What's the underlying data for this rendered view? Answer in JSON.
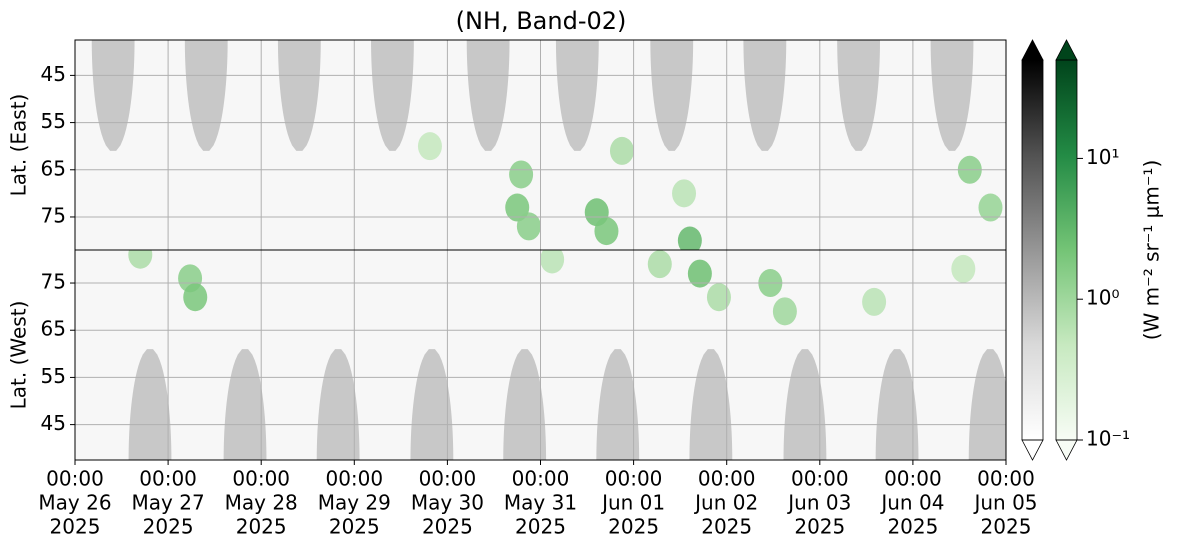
{
  "chart_data": {
    "type": "heatmap",
    "title": "(NH, Band-02)",
    "xlim": [
      "2025-05-26T00:00",
      "2025-06-05T00:00"
    ],
    "xticks": [
      {
        "value": "2025-05-26T00:00",
        "label": [
          "00:00",
          "May 26",
          "2025"
        ]
      },
      {
        "value": "2025-05-27T00:00",
        "label": [
          "00:00",
          "May 27",
          "2025"
        ]
      },
      {
        "value": "2025-05-28T00:00",
        "label": [
          "00:00",
          "May 28",
          "2025"
        ]
      },
      {
        "value": "2025-05-29T00:00",
        "label": [
          "00:00",
          "May 29",
          "2025"
        ]
      },
      {
        "value": "2025-05-30T00:00",
        "label": [
          "00:00",
          "May 30",
          "2025"
        ]
      },
      {
        "value": "2025-05-31T00:00",
        "label": [
          "00:00",
          "May 31",
          "2025"
        ]
      },
      {
        "value": "2025-06-01T00:00",
        "label": [
          "00:00",
          "Jun 01",
          "2025"
        ]
      },
      {
        "value": "2025-06-02T00:00",
        "label": [
          "00:00",
          "Jun 02",
          "2025"
        ]
      },
      {
        "value": "2025-06-03T00:00",
        "label": [
          "00:00",
          "Jun 03",
          "2025"
        ]
      },
      {
        "value": "2025-06-04T00:00",
        "label": [
          "00:00",
          "Jun 04",
          "2025"
        ]
      },
      {
        "value": "2025-06-05T00:00",
        "label": [
          "00:00",
          "Jun 05",
          "2025"
        ]
      }
    ],
    "grid": true,
    "log_scale": true,
    "clim": [
      0.1,
      50
    ],
    "panels": [
      {
        "ylabel": "Lat. (East)",
        "ylim": [
          37.5,
          82
        ],
        "y_inverted": true,
        "yticks": [
          45,
          55,
          65,
          75
        ],
        "day_domes": {
          "lat_edge": 61,
          "value": 0.7,
          "times": [
            "2025-05-26T09:50",
            "2025-05-27T09:50",
            "2025-05-28T09:50",
            "2025-05-29T09:50",
            "2025-05-30T10:30",
            "2025-05-31T09:30",
            "2025-06-01T09:50",
            "2025-06-02T09:50",
            "2025-06-03T10:00",
            "2025-06-04T10:05"
          ]
        },
        "patches": [
          {
            "time": "2025-05-29T19:30",
            "lat": 60,
            "value": 0.5
          },
          {
            "time": "2025-05-30T19:00",
            "lat": 66,
            "value": 1.5
          },
          {
            "time": "2025-05-30T18:00",
            "lat": 73,
            "value": 2
          },
          {
            "time": "2025-05-30T21:00",
            "lat": 77,
            "value": 1.5
          },
          {
            "time": "2025-05-31T14:30",
            "lat": 74,
            "value": 2.5
          },
          {
            "time": "2025-05-31T17:00",
            "lat": 78,
            "value": 2
          },
          {
            "time": "2025-05-31T21:00",
            "lat": 61,
            "value": 0.8
          },
          {
            "time": "2025-06-01T14:30",
            "lat": 80,
            "value": 3
          },
          {
            "time": "2025-06-01T13:00",
            "lat": 70,
            "value": 0.6
          },
          {
            "time": "2025-06-04T14:40",
            "lat": 65,
            "value": 1.5
          },
          {
            "time": "2025-06-04T20:00",
            "lat": 73,
            "value": 1.2
          }
        ]
      },
      {
        "ylabel": "Lat. (West)",
        "ylim": [
          37.5,
          82
        ],
        "y_inverted": false,
        "yticks": [
          45,
          55,
          65,
          75
        ],
        "day_domes": {
          "lat_edge": 61,
          "value": 0.7,
          "times": [
            "2025-05-26T19:20",
            "2025-05-27T19:50",
            "2025-05-28T19:50",
            "2025-05-29T20:00",
            "2025-05-30T19:55",
            "2025-05-31T19:55",
            "2025-06-01T19:55",
            "2025-06-02T20:10",
            "2025-06-03T19:55",
            "2025-06-04T19:55"
          ]
        },
        "patches": [
          {
            "time": "2025-05-26T16:50",
            "lat": 81,
            "value": 0.8
          },
          {
            "time": "2025-05-27T05:40",
            "lat": 76,
            "value": 1.5
          },
          {
            "time": "2025-05-27T07:00",
            "lat": 72,
            "value": 2
          },
          {
            "time": "2025-05-31T03:00",
            "lat": 80,
            "value": 0.6
          },
          {
            "time": "2025-06-01T06:45",
            "lat": 79,
            "value": 0.8
          },
          {
            "time": "2025-06-01T17:05",
            "lat": 77,
            "value": 2.5
          },
          {
            "time": "2025-06-01T22:00",
            "lat": 72,
            "value": 0.8
          },
          {
            "time": "2025-06-02T11:15",
            "lat": 75,
            "value": 1.5
          },
          {
            "time": "2025-06-02T15:00",
            "lat": 69,
            "value": 1
          },
          {
            "time": "2025-06-03T14:00",
            "lat": 71,
            "value": 0.6
          },
          {
            "time": "2025-06-04T13:00",
            "lat": 78,
            "value": 0.5
          }
        ]
      }
    ],
    "colorbars": [
      {
        "colors": [
          "#ffffff",
          "#d9d9d9",
          "#969696",
          "#525252",
          "#000000"
        ]
      },
      {
        "colors": [
          "#f7fcf5",
          "#c7e9c0",
          "#74c476",
          "#238b45",
          "#00441b"
        ],
        "ticks": [
          {
            "value": 0.1,
            "label": "10⁻¹"
          },
          {
            "value": 1,
            "label": "10⁰"
          },
          {
            "value": 10,
            "label": "10¹"
          }
        ],
        "label": "(W m⁻² sr⁻¹ μm⁻¹)"
      }
    ]
  }
}
